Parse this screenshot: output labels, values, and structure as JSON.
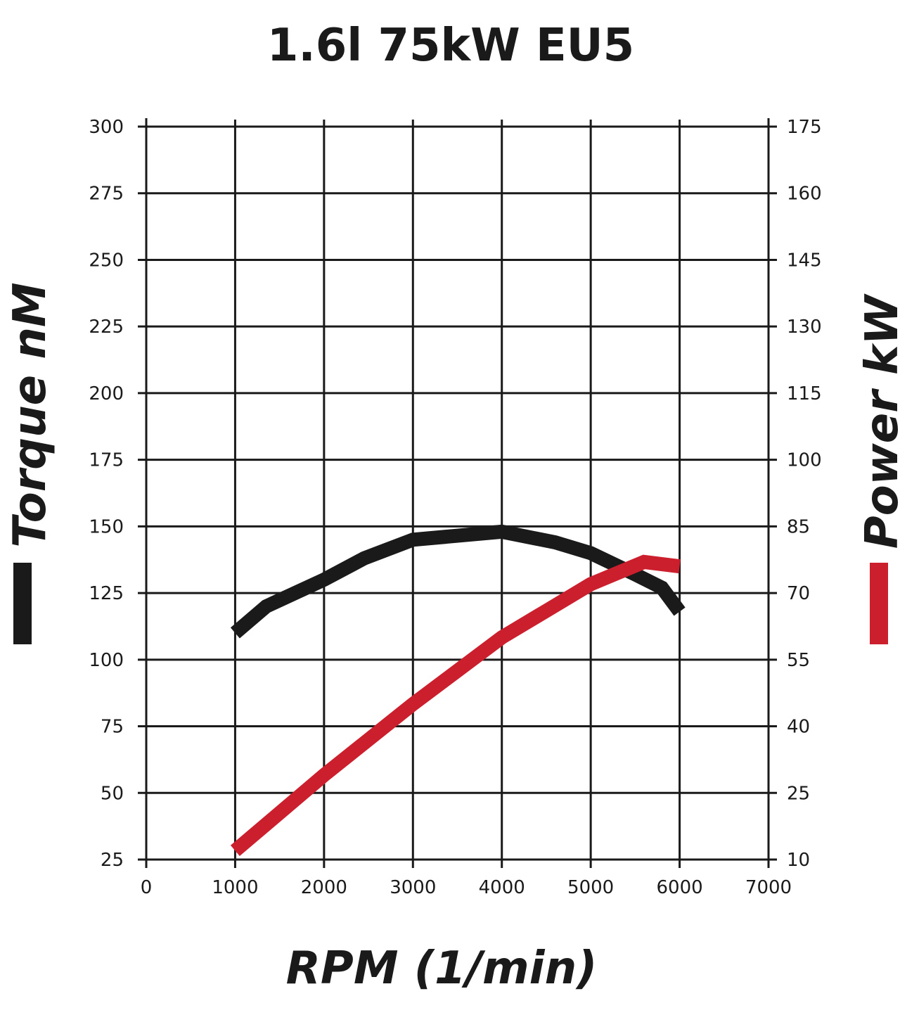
{
  "chart_data": {
    "type": "line",
    "title": "1.6l 75kW EU5",
    "xlabel": "RPM (1/min)",
    "ylabel_left": "Torque nM",
    "ylabel_right": "Power kW",
    "xlim": [
      0,
      7000
    ],
    "ylim_left": [
      25,
      300
    ],
    "ylim_right": [
      10,
      175
    ],
    "grid": true,
    "x_ticks": [
      "0",
      "1000",
      "2000",
      "3000",
      "4000",
      "5000",
      "6000",
      "7000"
    ],
    "y_left_ticks": [
      "25",
      "50",
      "75",
      "100",
      "125",
      "150",
      "175",
      "200",
      "225",
      "250",
      "275",
      "300"
    ],
    "y_right_ticks": [
      "10",
      "25",
      "40",
      "55",
      "70",
      "85",
      "100",
      "115",
      "130",
      "145",
      "160",
      "175"
    ],
    "series": [
      {
        "name": "Torque nM",
        "axis": "left",
        "color": "#1a1a1a",
        "x": [
          1000,
          1350,
          2000,
          2450,
          3000,
          4000,
          4600,
          5000,
          5500,
          5800,
          6000
        ],
        "y": [
          110,
          120,
          130,
          138,
          145,
          148,
          144,
          140,
          132,
          127,
          118
        ]
      },
      {
        "name": "Power kW",
        "axis": "right",
        "color": "#cc1f2d",
        "x": [
          1000,
          2000,
          3000,
          4000,
          4500,
          5000,
          5600,
          6000
        ],
        "y": [
          12,
          29,
          45,
          60,
          66,
          72,
          77,
          76
        ]
      }
    ]
  }
}
